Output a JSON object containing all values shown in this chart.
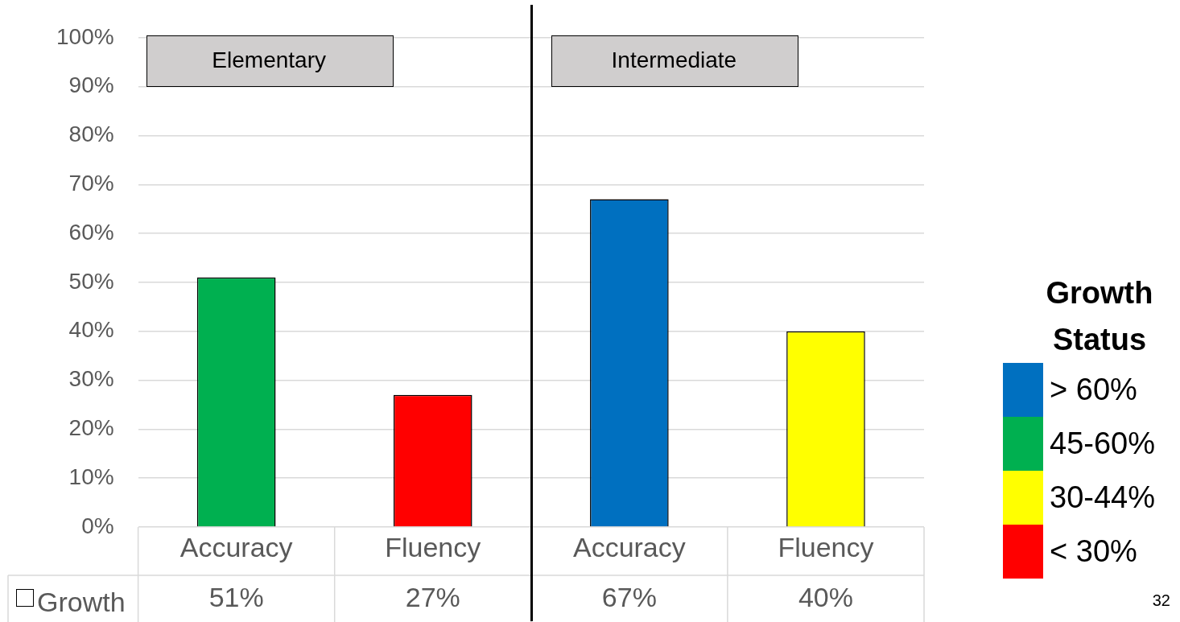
{
  "chart_data": {
    "type": "bar",
    "stacked": true,
    "categories": [
      "Accuracy",
      "Fluency",
      "Accuracy",
      "Fluency"
    ],
    "series": [
      {
        "name": "> 60%",
        "color": "#0070c0",
        "values": [
          null,
          null,
          67,
          null
        ],
        "value_labels": [
          null,
          null,
          "67%",
          null
        ]
      },
      {
        "name": "45-60%",
        "color": "#00b050",
        "values": [
          51,
          null,
          null,
          null
        ],
        "value_labels": [
          "51%",
          null,
          null,
          null
        ]
      },
      {
        "name": "30-44%",
        "color": "#ffff00",
        "values": [
          null,
          null,
          null,
          40
        ],
        "value_labels": [
          null,
          null,
          null,
          "40%"
        ]
      },
      {
        "name": "< 30%",
        "color": "#ff0000",
        "values": [
          null,
          27,
          null,
          null
        ],
        "value_labels": [
          null,
          "27%",
          null,
          null
        ]
      }
    ],
    "legend": "right",
    "legend_title": "Growth Status",
    "ylim": [
      0,
      100
    ],
    "yticks": [
      {
        "value": 0,
        "label": "0%"
      },
      {
        "value": 10,
        "label": "10%"
      },
      {
        "value": 20,
        "label": "20%"
      },
      {
        "value": 30,
        "label": "30%"
      },
      {
        "value": 40,
        "label": "40%"
      },
      {
        "value": 50,
        "label": "50%"
      },
      {
        "value": 60,
        "label": "60%"
      },
      {
        "value": 70,
        "label": "70%"
      },
      {
        "value": 80,
        "label": "80%"
      },
      {
        "value": 90,
        "label": "90%"
      },
      {
        "value": 100,
        "label": "100%"
      }
    ],
    "grid": "y",
    "annotations": [
      "Elementary",
      "Intermediate",
      "Growth",
      "32"
    ]
  }
}
